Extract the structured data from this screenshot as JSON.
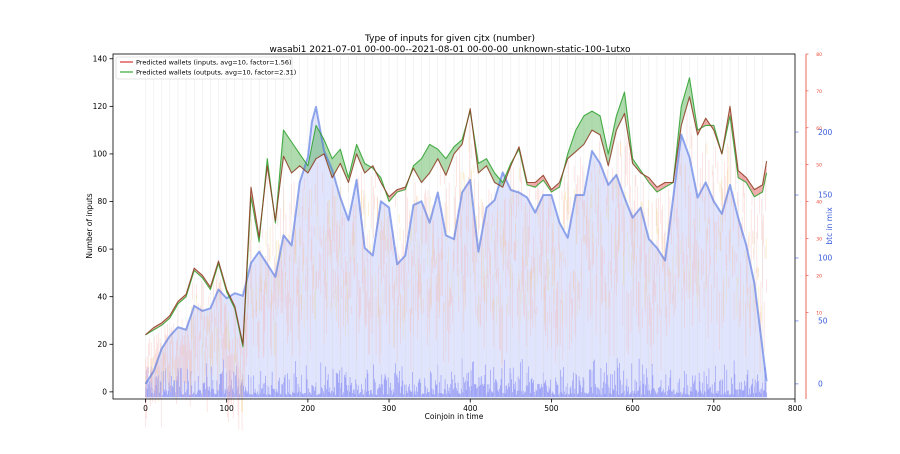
{
  "chart_data": {
    "type": "line",
    "title": "Type of inputs for given cjtx (number)",
    "subtitle": "wasabi1 2021-07-01 00-00-00--2021-08-01 00-00-00_unknown-static-100-1utxo",
    "xlabel": "Coinjoin in time",
    "ylabel": "Number of inputs",
    "y2label": "btc in mix",
    "xlim": [
      -40,
      800
    ],
    "ylim": [
      -3,
      142
    ],
    "y2lim": [
      -12,
      262
    ],
    "y3lim": [
      -13.5,
      80
    ],
    "xticks": [
      0,
      100,
      200,
      300,
      400,
      500,
      600,
      700,
      800
    ],
    "yticks": [
      0,
      20,
      40,
      60,
      80,
      100,
      120,
      140
    ],
    "y2ticks": [
      0,
      50,
      100,
      150,
      200
    ],
    "y3ticks": [
      10,
      20,
      30,
      40,
      50,
      60,
      70,
      80
    ],
    "legend": {
      "position": "top-left",
      "entries": [
        {
          "label": "Predicted wallets (inputs, avg=10, factor=1.56)",
          "color": "#d62728"
        },
        {
          "label": "Predicted wallets (outputs, avg=10, factor=2.31)",
          "color": "#2ca02c"
        }
      ]
    },
    "colors": {
      "inputs": "#d62728",
      "outputs": "#2ca02c",
      "mix": "#4c6fe0",
      "right_axis_red": "#e8422f",
      "right_axis_blue": "#3b5bdb"
    },
    "series": [
      {
        "name": "Predicted wallets (inputs, avg=10, factor=1.56)",
        "axis": "left",
        "x": [
          0,
          10,
          20,
          30,
          40,
          50,
          60,
          70,
          80,
          90,
          100,
          110,
          120,
          130,
          140,
          150,
          160,
          170,
          180,
          190,
          200,
          210,
          220,
          230,
          240,
          250,
          260,
          270,
          280,
          290,
          300,
          310,
          320,
          330,
          340,
          350,
          360,
          370,
          380,
          390,
          400,
          410,
          420,
          430,
          440,
          450,
          460,
          470,
          480,
          490,
          500,
          510,
          520,
          530,
          540,
          550,
          560,
          570,
          580,
          590,
          600,
          610,
          620,
          630,
          640,
          650,
          660,
          670,
          680,
          690,
          700,
          710,
          720,
          730,
          740,
          750,
          760,
          765
        ],
        "values": [
          24,
          27,
          29,
          32,
          38,
          41,
          52,
          49,
          44,
          55,
          43,
          36,
          20,
          86,
          65,
          95,
          72,
          99,
          92,
          95,
          92,
          98,
          100,
          90,
          96,
          88,
          100,
          92,
          95,
          88,
          82,
          85,
          86,
          94,
          88,
          92,
          98,
          91,
          100,
          104,
          119,
          92,
          95,
          88,
          86,
          95,
          103,
          88,
          88,
          91,
          85,
          88,
          98,
          101,
          104,
          110,
          108,
          95,
          110,
          117,
          96,
          92,
          90,
          86,
          88,
          88,
          112,
          124,
          108,
          115,
          110,
          100,
          120,
          93,
          90,
          85,
          87,
          97
        ]
      },
      {
        "name": "Predicted wallets (outputs, avg=10, factor=2.31)",
        "axis": "left",
        "x": [
          0,
          10,
          20,
          30,
          40,
          50,
          60,
          70,
          80,
          90,
          100,
          110,
          120,
          130,
          140,
          150,
          160,
          170,
          180,
          190,
          200,
          210,
          220,
          230,
          240,
          250,
          260,
          270,
          280,
          290,
          300,
          310,
          320,
          330,
          340,
          350,
          360,
          370,
          380,
          390,
          400,
          410,
          420,
          430,
          440,
          450,
          460,
          470,
          480,
          490,
          500,
          510,
          520,
          530,
          540,
          550,
          560,
          570,
          580,
          590,
          600,
          610,
          620,
          630,
          640,
          650,
          660,
          670,
          680,
          690,
          700,
          710,
          720,
          730,
          740,
          750,
          760,
          765
        ],
        "values": [
          24,
          26,
          28,
          31,
          37,
          40,
          51,
          48,
          43,
          54,
          42,
          35,
          19,
          82,
          63,
          98,
          71,
          110,
          105,
          100,
          95,
          112,
          106,
          98,
          102,
          90,
          104,
          96,
          94,
          90,
          80,
          84,
          85,
          95,
          98,
          104,
          102,
          98,
          103,
          106,
          118,
          96,
          98,
          92,
          88,
          96,
          102,
          87,
          86,
          89,
          84,
          86,
          100,
          110,
          116,
          118,
          116,
          100,
          116,
          126,
          98,
          93,
          88,
          84,
          86,
          88,
          120,
          132,
          110,
          112,
          112,
          100,
          116,
          90,
          88,
          82,
          84,
          92
        ]
      },
      {
        "name": "",
        "axis": "right",
        "x": [
          0,
          10,
          20,
          30,
          40,
          50,
          60,
          70,
          80,
          90,
          100,
          110,
          120,
          130,
          140,
          150,
          160,
          170,
          180,
          190,
          200,
          205,
          210,
          220,
          230,
          240,
          250,
          260,
          270,
          280,
          290,
          300,
          310,
          320,
          330,
          340,
          350,
          360,
          370,
          380,
          390,
          400,
          410,
          420,
          430,
          440,
          450,
          460,
          470,
          480,
          490,
          500,
          510,
          520,
          530,
          540,
          550,
          560,
          570,
          580,
          590,
          600,
          610,
          620,
          630,
          640,
          650,
          660,
          670,
          680,
          690,
          700,
          710,
          720,
          730,
          740,
          750,
          760,
          765
        ],
        "values": [
          0,
          10,
          28,
          38,
          45,
          43,
          62,
          58,
          60,
          75,
          68,
          72,
          70,
          96,
          105,
          95,
          85,
          118,
          110,
          160,
          180,
          208,
          220,
          185,
          170,
          148,
          130,
          162,
          108,
          102,
          145,
          140,
          95,
          102,
          142,
          145,
          128,
          152,
          118,
          115,
          152,
          162,
          105,
          140,
          146,
          168,
          154,
          152,
          148,
          136,
          150,
          150,
          128,
          116,
          150,
          150,
          185,
          175,
          158,
          166,
          148,
          132,
          140,
          115,
          108,
          98,
          148,
          198,
          180,
          148,
          160,
          145,
          135,
          158,
          132,
          110,
          80,
          28,
          2
        ]
      }
    ]
  }
}
